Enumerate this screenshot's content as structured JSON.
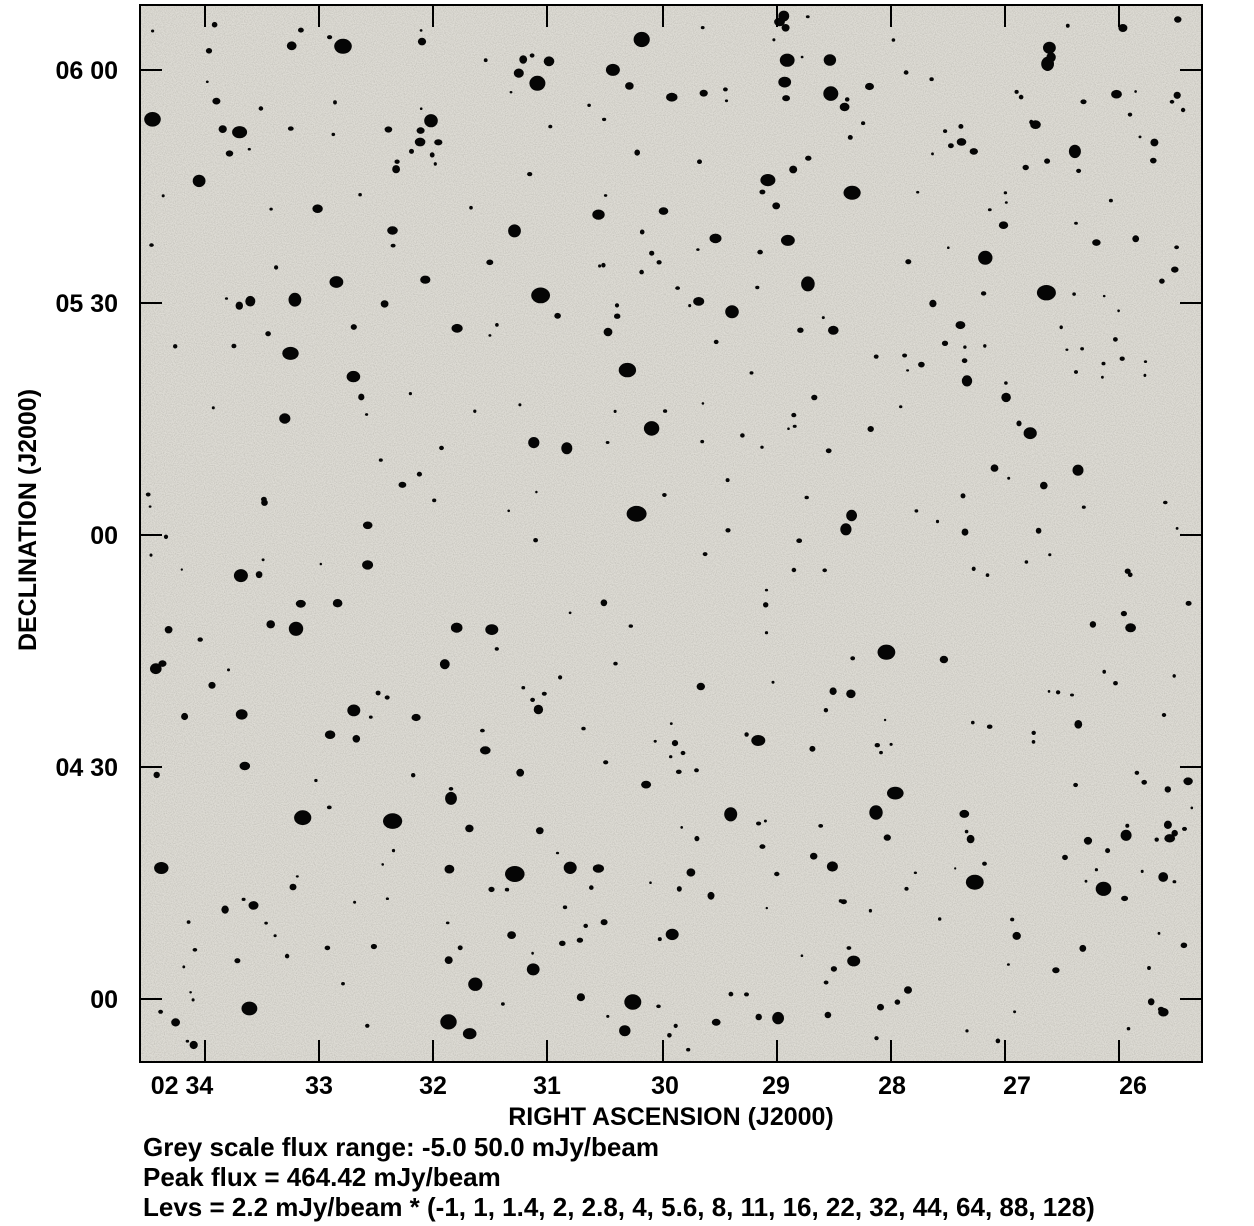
{
  "plot": {
    "y_axis": {
      "label": "DECLINATION (J2000)",
      "ticks": [
        "06 00",
        "05 30",
        "00",
        "04 30",
        "00"
      ]
    },
    "x_axis": {
      "label": "RIGHT ASCENSION (J2000)",
      "ticks": [
        "02 34",
        "33",
        "32",
        "31",
        "30",
        "29",
        "28",
        "27",
        "26"
      ]
    }
  },
  "caption": [
    "Grey scale flux range: -5.0 50.0 mJy/beam",
    "Peak flux =  464.42 mJy/beam",
    "Levs = 2.2 mJy/beam * (-1, 1, 1.4, 2, 2.8, 4, 5.6, 8, 11, 16, 22, 32, 44, 64, 88, 128)"
  ]
}
